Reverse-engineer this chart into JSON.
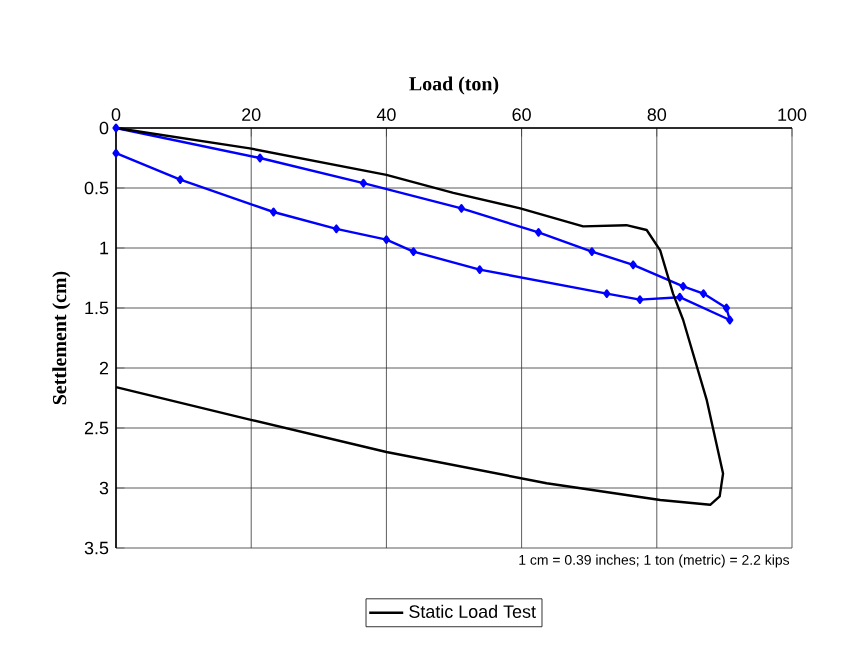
{
  "chart_data": {
    "type": "line",
    "xlabel": "Load (ton)",
    "ylabel": "Settlement (cm)",
    "xlim": [
      0,
      100
    ],
    "xticks": [
      0,
      20,
      40,
      60,
      80,
      100
    ],
    "ylim": [
      3.5,
      0
    ],
    "yticks": [
      0,
      0.5,
      1,
      1.5,
      2,
      2.5,
      3,
      3.5
    ],
    "grid": true,
    "legend": "bottom",
    "annotations": [
      "1 cm = 0.39 inches; 1 ton (metric) = 2.2 kips"
    ],
    "series": [
      {
        "color": "#0000ff",
        "marker": "diamond",
        "x": [
          0,
          21.3,
          36.6,
          51.1,
          62.5,
          70.4,
          76.5,
          83.9,
          86.9,
          90.3,
          90.8,
          83.4,
          77.5,
          72.6,
          53.8,
          44,
          40,
          32.6,
          23.3,
          9.5,
          0
        ],
        "values": [
          0,
          0.25,
          0.46,
          0.67,
          0.87,
          1.03,
          1.14,
          1.32,
          1.38,
          1.5,
          1.6,
          1.41,
          1.43,
          1.38,
          1.18,
          1.03,
          0.93,
          0.84,
          0.7,
          0.43,
          0.21
        ]
      },
      {
        "name": "Static Load Test",
        "color": "#000000",
        "marker": "none",
        "x": [
          0,
          19.8,
          40,
          49.9,
          59.8,
          69.1,
          75.5,
          78.5,
          80.5,
          82.4,
          83.9,
          87.4,
          89.8,
          89.3,
          87.9,
          80.5,
          63.7,
          40,
          19.8,
          0
        ],
        "values": [
          0,
          0.17,
          0.39,
          0.54,
          0.67,
          0.82,
          0.81,
          0.85,
          1.02,
          1.38,
          1.6,
          2.27,
          2.88,
          3.07,
          3.14,
          3.1,
          2.96,
          2.7,
          2.43,
          2.16
        ]
      }
    ]
  }
}
